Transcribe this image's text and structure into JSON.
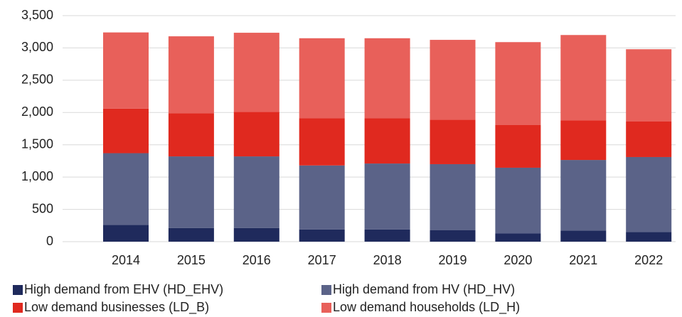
{
  "chart_data": {
    "type": "stacked_bar",
    "categories": [
      "2014",
      "2015",
      "2016",
      "2017",
      "2018",
      "2019",
      "2020",
      "2021",
      "2022"
    ],
    "series": [
      {
        "name": "High demand from EHV (HD_EHV)",
        "color": "#1f2a5c",
        "values": [
          260,
          210,
          210,
          190,
          190,
          180,
          130,
          170,
          150
        ]
      },
      {
        "name": "High demand from HV (HD_HV)",
        "color": "#5b6388",
        "values": [
          1110,
          1110,
          1110,
          990,
          1020,
          1020,
          1015,
          1095,
          1160
        ]
      },
      {
        "name": "Low demand businesses (LD_B)",
        "color": "#e0291f",
        "values": [
          690,
          670,
          690,
          730,
          700,
          690,
          660,
          615,
          550
        ]
      },
      {
        "name": "Low demand households (LD_H)",
        "color": "#e8605a",
        "values": [
          1180,
          1190,
          1225,
          1240,
          1240,
          1235,
          1285,
          1320,
          1120
        ]
      }
    ],
    "ylim": [
      0,
      3500
    ],
    "yticks": [
      0,
      500,
      {
        "value": 1000,
        "label": "1,000"
      },
      {
        "value": 1500,
        "label": "1,500"
      },
      {
        "value": 2000,
        "label": "2,000"
      },
      {
        "value": 2500,
        "label": "2,500"
      },
      {
        "value": 3000,
        "label": "3,000"
      },
      {
        "value": 3500,
        "label": "3,500"
      }
    ],
    "grid": true
  }
}
